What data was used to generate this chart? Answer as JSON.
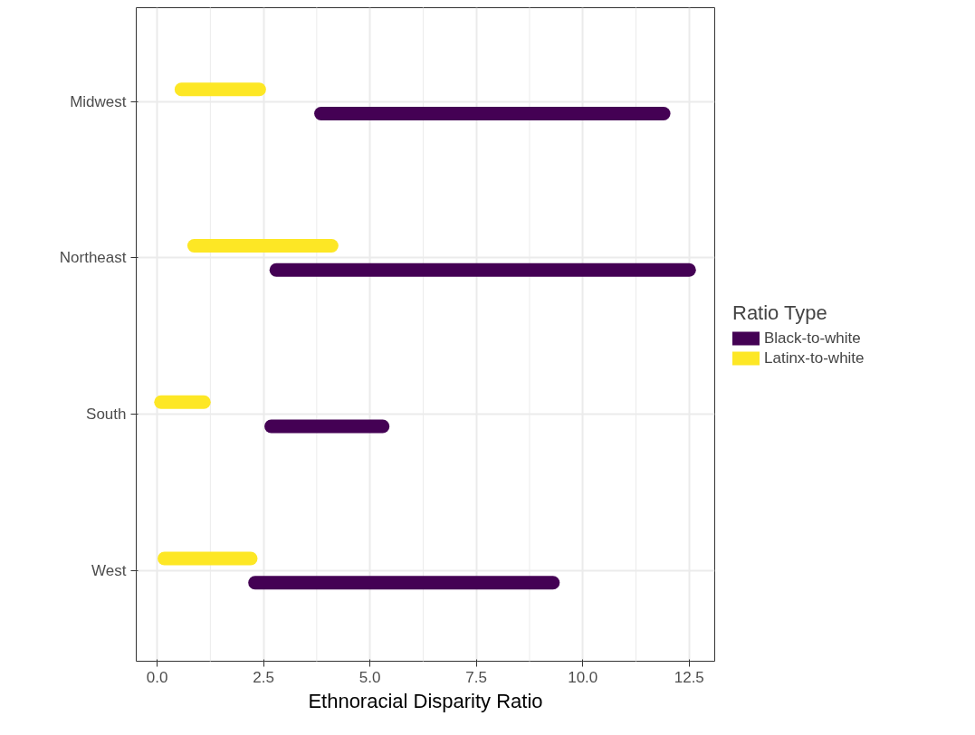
{
  "chart_data": {
    "type": "bar",
    "orientation": "horizontal",
    "xlabel": "Ethnoracial Disparity Ratio",
    "legend_title": "Ratio Type",
    "categories": [
      "Midwest",
      "Northeast",
      "South",
      "West"
    ],
    "series": [
      {
        "name": "Black-to-white",
        "color": "#440154",
        "base": [
          3.85,
          2.8,
          2.68,
          2.3
        ],
        "values": [
          8.05,
          9.7,
          2.62,
          7.0
        ]
      },
      {
        "name": "Latinx-to-white",
        "color": "#fde725",
        "base": [
          0.57,
          0.87,
          0.09,
          0.17
        ],
        "values": [
          1.83,
          3.23,
          1.01,
          2.03
        ]
      }
    ],
    "xlim": [
      -0.49,
      13.1
    ],
    "xticks": [
      {
        "value": 0,
        "label": "0.0"
      },
      {
        "value": 2.5,
        "label": "2.5"
      },
      {
        "value": 5,
        "label": "5.0"
      },
      {
        "value": 7.5,
        "label": "7.5"
      },
      {
        "value": 10,
        "label": "10.0"
      },
      {
        "value": 12.5,
        "label": "12.5"
      }
    ],
    "grid": true,
    "legend": "right"
  }
}
